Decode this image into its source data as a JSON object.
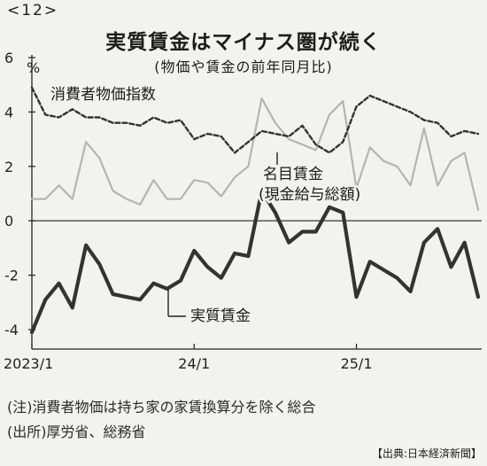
{
  "page_number": "<12>",
  "title": "実質賃金はマイナス圏が続く",
  "subtitle": "(物価や賃金の前年同月比)",
  "note": "(注)消費者物価は持ち家の家賃換算分を除く総合",
  "source": "(出所)厚労省、総務省",
  "credit": "【出典:日本経済新聞】",
  "chart_data": {
    "type": "line",
    "title": "実質賃金はマイナス圏が続く",
    "subtitle": "(物価や賃金の前年同月比)",
    "ylabel": "%",
    "ylim": [
      -4,
      6
    ],
    "yticks": [
      -4,
      -2,
      0,
      2,
      4,
      6
    ],
    "x_tick_labels": [
      {
        "label": "2023/1",
        "index": 0
      },
      {
        "label": "24/1",
        "index": 12
      },
      {
        "label": "25/1",
        "index": 24
      }
    ],
    "x_count": 34,
    "series": [
      {
        "name": "消費者物価指数",
        "style": "dashed",
        "color": "#333333",
        "values": [
          4.9,
          3.9,
          3.8,
          4.1,
          3.8,
          3.8,
          3.6,
          3.6,
          3.5,
          3.8,
          3.6,
          3.7,
          3.0,
          3.2,
          3.1,
          2.5,
          2.9,
          3.3,
          3.2,
          3.1,
          3.5,
          2.8,
          2.5,
          2.9,
          4.2,
          4.6,
          4.4,
          4.2,
          4.0,
          3.7,
          3.6,
          3.1,
          3.3,
          3.2
        ]
      },
      {
        "name": "名目賃金(現金給与総額)",
        "style": "solid",
        "color": "#b4b4b4",
        "values": [
          0.8,
          0.8,
          1.3,
          0.8,
          2.9,
          2.3,
          1.1,
          0.8,
          0.6,
          1.5,
          0.8,
          0.8,
          1.5,
          1.4,
          0.9,
          1.6,
          2.0,
          4.5,
          3.6,
          3.0,
          2.8,
          2.6,
          3.9,
          4.4,
          1.2,
          2.7,
          2.2,
          2.0,
          1.3,
          3.4,
          1.3,
          2.2,
          2.5,
          0.4
        ]
      },
      {
        "name": "実質賃金",
        "style": "solid-bold",
        "color": "#333333",
        "values": [
          -4.1,
          -2.9,
          -2.3,
          -3.2,
          -0.9,
          -1.6,
          -2.7,
          -2.8,
          -2.9,
          -2.3,
          -2.5,
          -2.2,
          -1.1,
          -1.7,
          -2.1,
          -1.2,
          -1.3,
          1.1,
          0.3,
          -0.8,
          -0.4,
          -0.4,
          0.5,
          0.3,
          -2.8,
          -1.5,
          -1.8,
          -2.1,
          -2.6,
          -0.8,
          -0.3,
          -1.7,
          -0.8,
          -2.8
        ]
      }
    ],
    "series_labels": {
      "cpi": "消費者物価指数",
      "nominal_line1": "名目賃金",
      "nominal_line2": "(現金給与総額)",
      "real": "実質賃金"
    },
    "grid": false,
    "zero_line": true
  }
}
